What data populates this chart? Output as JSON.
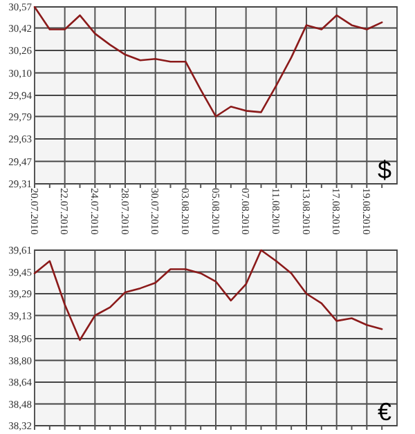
{
  "chart_data": [
    {
      "type": "line",
      "categories": [
        "20.07.2010",
        null,
        "22.07.2010",
        null,
        "24.07.2010",
        null,
        "28.07.2010",
        null,
        "30.07.2010",
        null,
        "03.08.2010",
        null,
        "05.08.2010",
        null,
        "07.08.2010",
        null,
        "11.08.2010",
        null,
        "13.08.2010",
        null,
        "17.08.2010",
        null,
        "19.08.2010",
        null
      ],
      "series": [
        {
          "color": "#8b1a1a",
          "values": [
            30.57,
            30.41,
            30.41,
            30.51,
            30.38,
            30.3,
            30.23,
            30.19,
            30.2,
            30.18,
            30.18,
            29.98,
            29.79,
            29.86,
            29.83,
            29.82,
            30.01,
            30.21,
            30.44,
            30.41,
            30.51,
            30.44,
            30.41,
            30.46
          ]
        }
      ],
      "ylim": [
        29.31,
        30.57
      ],
      "yticks": [
        {
          "value": 29.31,
          "label": "29,31"
        },
        {
          "value": 29.47,
          "label": "29,47"
        },
        {
          "value": 29.63,
          "label": "29,63"
        },
        {
          "value": 29.79,
          "label": "29,79"
        },
        {
          "value": 29.94,
          "label": "29,94"
        },
        {
          "value": 30.1,
          "label": "30,10"
        },
        {
          "value": 30.26,
          "label": "30,26"
        },
        {
          "value": 30.42,
          "label": "30,42"
        },
        {
          "value": 30.57,
          "label": "30,57"
        }
      ],
      "grid": true,
      "annotations": [
        "$"
      ]
    },
    {
      "type": "line",
      "categories": [
        "20.07.2010",
        null,
        "22.07.2010",
        null,
        "24.07.2010",
        null,
        "28.07.2010",
        null,
        "30.07.2010",
        null,
        "03.08.2010",
        null,
        "05.08.2010",
        null,
        "07.08.2010",
        null,
        "11.08.2010",
        null,
        "13.08.2010",
        null,
        "17.08.2010",
        null,
        "19.08.2010",
        null
      ],
      "series": [
        {
          "color": "#8b1a1a",
          "values": [
            39.44,
            39.53,
            39.21,
            38.95,
            39.13,
            39.19,
            39.3,
            39.33,
            39.37,
            39.47,
            39.47,
            39.44,
            39.38,
            39.24,
            39.36,
            39.61,
            39.53,
            39.44,
            39.29,
            39.22,
            39.09,
            39.11,
            39.06,
            39.03
          ]
        }
      ],
      "ylim": [
        38.32,
        39.61
      ],
      "yticks": [
        {
          "value": 38.32,
          "label": "38,32"
        },
        {
          "value": 38.48,
          "label": "38,48"
        },
        {
          "value": 38.64,
          "label": "38,64"
        },
        {
          "value": 38.8,
          "label": "38,80"
        },
        {
          "value": 38.96,
          "label": "38,96"
        },
        {
          "value": 39.13,
          "label": "39,13"
        },
        {
          "value": 39.29,
          "label": "39,29"
        },
        {
          "value": 39.45,
          "label": "39,45"
        },
        {
          "value": 39.61,
          "label": "39,61"
        }
      ],
      "grid": true,
      "tick_labels": "y",
      "annotations": [
        "€"
      ]
    }
  ]
}
